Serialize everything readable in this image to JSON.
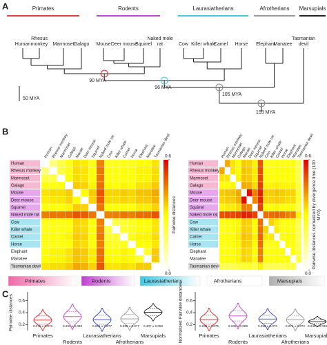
{
  "panel_labels": [
    "A",
    "B",
    "C"
  ],
  "tree": {
    "groups": [
      {
        "name": "Primates",
        "color": "#e0403a"
      },
      {
        "name": "Rodents",
        "color": "#c040d0"
      },
      {
        "name": "Laurasiatherians",
        "color": "#40c8e4"
      },
      {
        "name": "Afrotherians",
        "color": "#9a9a9a"
      },
      {
        "name": "Marsupials",
        "color": "#222222"
      }
    ],
    "species": [
      "Human",
      "Rhesus monkey",
      "Marmoset",
      "Galago",
      "Mouse",
      "Deer mouse",
      "Squirrel",
      "Naked mole rat",
      "Cow",
      "Killer whale",
      "Camel",
      "Horse",
      "Elephant",
      "Manatee",
      "Tasmanian devil"
    ],
    "scale_bar": "50 MYA",
    "node_labels": [
      "90 MYA",
      "96 MYA",
      "105 MYA",
      "159 MYA"
    ]
  },
  "heatmap": {
    "clim": [
      0,
      0.6
    ],
    "cticks": [
      {
        "value": 0,
        "label": "0.0"
      },
      0.6
    ],
    "panels": [
      {
        "colorbar_label": "Pairwise distances",
        "matrix": [
          [
            0,
            0.15,
            0.22,
            0.28,
            0.33,
            0.32,
            0.28,
            0.45,
            0.27,
            0.27,
            0.28,
            0.27,
            0.3,
            0.3,
            0.33
          ],
          [
            0.15,
            0,
            0.22,
            0.28,
            0.34,
            0.33,
            0.29,
            0.46,
            0.28,
            0.28,
            0.29,
            0.28,
            0.31,
            0.31,
            0.34
          ],
          [
            0.22,
            0.22,
            0,
            0.29,
            0.34,
            0.33,
            0.29,
            0.46,
            0.28,
            0.28,
            0.29,
            0.28,
            0.31,
            0.31,
            0.34
          ],
          [
            0.28,
            0.28,
            0.29,
            0,
            0.36,
            0.35,
            0.31,
            0.47,
            0.3,
            0.3,
            0.31,
            0.3,
            0.33,
            0.33,
            0.36
          ],
          [
            0.33,
            0.34,
            0.34,
            0.36,
            0,
            0.3,
            0.36,
            0.5,
            0.35,
            0.35,
            0.36,
            0.35,
            0.37,
            0.37,
            0.4
          ],
          [
            0.32,
            0.33,
            0.33,
            0.35,
            0.3,
            0,
            0.35,
            0.49,
            0.34,
            0.34,
            0.35,
            0.34,
            0.36,
            0.36,
            0.39
          ],
          [
            0.28,
            0.29,
            0.29,
            0.31,
            0.36,
            0.35,
            0,
            0.46,
            0.29,
            0.29,
            0.3,
            0.29,
            0.32,
            0.32,
            0.35
          ],
          [
            0.45,
            0.46,
            0.46,
            0.47,
            0.5,
            0.49,
            0.46,
            0,
            0.45,
            0.45,
            0.46,
            0.45,
            0.47,
            0.47,
            0.5
          ],
          [
            0.27,
            0.28,
            0.28,
            0.3,
            0.35,
            0.34,
            0.29,
            0.45,
            0,
            0.22,
            0.24,
            0.26,
            0.3,
            0.3,
            0.33
          ],
          [
            0.27,
            0.28,
            0.28,
            0.3,
            0.35,
            0.34,
            0.29,
            0.45,
            0.22,
            0,
            0.24,
            0.26,
            0.3,
            0.3,
            0.33
          ],
          [
            0.28,
            0.29,
            0.29,
            0.31,
            0.36,
            0.35,
            0.3,
            0.46,
            0.24,
            0.24,
            0,
            0.27,
            0.31,
            0.31,
            0.34
          ],
          [
            0.27,
            0.28,
            0.28,
            0.3,
            0.35,
            0.34,
            0.29,
            0.45,
            0.26,
            0.26,
            0.27,
            0,
            0.3,
            0.3,
            0.33
          ],
          [
            0.3,
            0.31,
            0.31,
            0.33,
            0.37,
            0.36,
            0.32,
            0.47,
            0.3,
            0.3,
            0.31,
            0.3,
            0,
            0.25,
            0.36
          ],
          [
            0.3,
            0.31,
            0.31,
            0.33,
            0.37,
            0.36,
            0.32,
            0.47,
            0.3,
            0.3,
            0.31,
            0.3,
            0.25,
            0,
            0.36
          ],
          [
            0.33,
            0.34,
            0.34,
            0.36,
            0.4,
            0.39,
            0.35,
            0.5,
            0.33,
            0.33,
            0.34,
            0.33,
            0.36,
            0.36,
            0
          ]
        ]
      },
      {
        "colorbar_label": "Pairwise distances normalized by divergence time (100 MYA)",
        "matrix": [
          [
            0,
            0.4,
            0.33,
            0.3,
            0.36,
            0.35,
            0.31,
            0.5,
            0.28,
            0.28,
            0.29,
            0.28,
            0.29,
            0.29,
            0.21
          ],
          [
            0.4,
            0,
            0.33,
            0.3,
            0.37,
            0.36,
            0.32,
            0.51,
            0.29,
            0.29,
            0.3,
            0.29,
            0.3,
            0.3,
            0.21
          ],
          [
            0.33,
            0.33,
            0,
            0.31,
            0.37,
            0.36,
            0.32,
            0.51,
            0.29,
            0.29,
            0.3,
            0.29,
            0.3,
            0.3,
            0.21
          ],
          [
            0.3,
            0.3,
            0.31,
            0,
            0.4,
            0.39,
            0.34,
            0.52,
            0.31,
            0.31,
            0.32,
            0.31,
            0.31,
            0.31,
            0.23
          ],
          [
            0.36,
            0.37,
            0.37,
            0.4,
            0,
            0.58,
            0.45,
            0.56,
            0.36,
            0.36,
            0.37,
            0.36,
            0.35,
            0.35,
            0.25
          ],
          [
            0.35,
            0.36,
            0.36,
            0.39,
            0.58,
            0,
            0.44,
            0.55,
            0.35,
            0.35,
            0.36,
            0.35,
            0.34,
            0.34,
            0.25
          ],
          [
            0.31,
            0.32,
            0.32,
            0.34,
            0.45,
            0.44,
            0,
            0.52,
            0.3,
            0.3,
            0.31,
            0.3,
            0.3,
            0.3,
            0.22
          ],
          [
            0.5,
            0.51,
            0.51,
            0.52,
            0.56,
            0.55,
            0.52,
            0,
            0.47,
            0.47,
            0.48,
            0.47,
            0.45,
            0.45,
            0.31
          ],
          [
            0.28,
            0.29,
            0.29,
            0.31,
            0.36,
            0.35,
            0.3,
            0.47,
            0,
            0.35,
            0.32,
            0.28,
            0.29,
            0.29,
            0.21
          ],
          [
            0.28,
            0.29,
            0.29,
            0.31,
            0.36,
            0.35,
            0.3,
            0.47,
            0.35,
            0,
            0.32,
            0.28,
            0.29,
            0.29,
            0.21
          ],
          [
            0.29,
            0.3,
            0.3,
            0.32,
            0.37,
            0.36,
            0.31,
            0.48,
            0.32,
            0.32,
            0,
            0.28,
            0.3,
            0.3,
            0.21
          ],
          [
            0.28,
            0.29,
            0.29,
            0.31,
            0.36,
            0.35,
            0.3,
            0.47,
            0.28,
            0.28,
            0.28,
            0,
            0.29,
            0.29,
            0.21
          ],
          [
            0.29,
            0.3,
            0.3,
            0.31,
            0.35,
            0.34,
            0.3,
            0.45,
            0.29,
            0.29,
            0.3,
            0.29,
            0,
            0.3,
            0.23
          ],
          [
            0.29,
            0.3,
            0.3,
            0.31,
            0.35,
            0.34,
            0.3,
            0.45,
            0.29,
            0.29,
            0.3,
            0.29,
            0.3,
            0,
            0.23
          ],
          [
            0.21,
            0.21,
            0.21,
            0.23,
            0.25,
            0.25,
            0.22,
            0.31,
            0.21,
            0.21,
            0.21,
            0.21,
            0.23,
            0.23,
            0
          ]
        ]
      }
    ]
  },
  "violins": {
    "type": "violin",
    "ylim": [
      0.1,
      0.7
    ],
    "yticks": [
      0.2,
      0.4,
      0.6
    ],
    "colors": [
      "#e02020",
      "#c040c0",
      "#3040c0",
      "#909090",
      "#202020"
    ],
    "panels": [
      {
        "ylabel": "Pairwise distances",
        "means": [
          0.275,
          0.333,
          0.281,
          0.296,
          0.407
        ],
        "sds": [
          0.07,
          0.085,
          0.077,
          0.077,
          0.058
        ],
        "value_labels": [
          "0.275 ± 0.070",
          "0.333 ± 0.085",
          "0.281 ± 0.077",
          "0.296 ± 0.077",
          "0.407 ± 0.058"
        ]
      },
      {
        "ylabel": "Normalized Pairwise distances",
        "means": [
          0.285,
          0.345,
          0.292,
          0.279,
          0.249
        ],
        "sds": [
          0.075,
          0.085,
          0.07,
          0.072,
          0.035
        ],
        "value_labels": [
          "0.285 ± 0.075",
          "0.345 ± 0.085",
          "0.292 ± 0.070",
          "0.279 ± 0.072",
          "0.249 ± 0.035"
        ]
      }
    ]
  }
}
